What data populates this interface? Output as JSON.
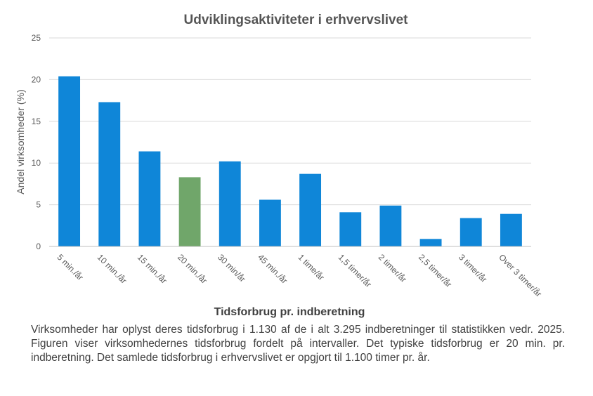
{
  "chart_data": {
    "type": "bar",
    "title": "Udviklingsaktiviteter  i erhvervslivet",
    "xlabel": "Tidsforbrug pr. indberetning",
    "ylabel": "Andel virksomheder  (%)",
    "ylim": [
      0,
      25
    ],
    "yticks": [
      "0",
      "5",
      "10",
      "15",
      "20",
      "25"
    ],
    "grid": true,
    "legend": "none",
    "categories": [
      "5 min./år",
      "10 min./år",
      "15 min./år",
      "20 min./år",
      "30 min/år",
      "45 min./år",
      "1 time/år",
      "1,5 timer/år",
      "2 timer/år",
      "2,5 timer/år",
      "3 timer/år",
      "Over 3 timer/år"
    ],
    "values": [
      20.4,
      17.3,
      11.4,
      8.3,
      10.2,
      5.6,
      8.7,
      4.1,
      4.9,
      0.9,
      3.4,
      3.9
    ],
    "highlight_index": 3,
    "colors": {
      "bar": "#0F86D8",
      "highlight": "#70A66A",
      "grid": "#D9D9D9",
      "axis": "#BFBFBF"
    }
  },
  "caption": "Virksomheder har oplyst deres tidsforbrug i 1.130 af de i alt 3.295 indberetninger til statistikken vedr. 2025. Figuren viser virksomhedernes tidsforbrug fordelt på intervaller. Det typiske tidsforbrug er 20 min. pr. indberetning. Det samlede tidsforbrug i erhvervslivet  er opgjort til 1.100 timer pr. år."
}
